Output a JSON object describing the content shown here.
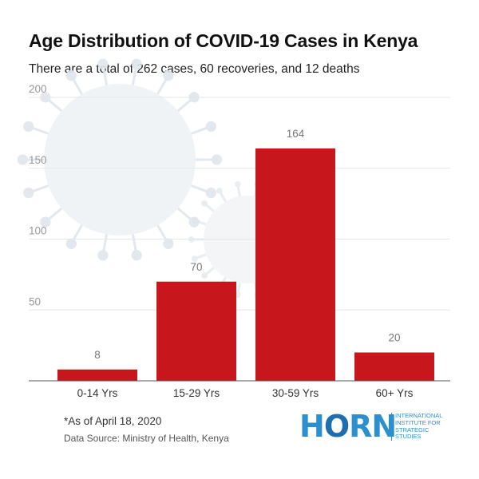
{
  "header": {
    "title": "Age Distribution of COVID-19 Cases in Kenya",
    "subtitle": "There are a total of 262 cases, 60 recoveries, and 12 deaths"
  },
  "chart_data": {
    "type": "bar",
    "categories": [
      "0-14 Yrs",
      "15-29 Yrs",
      "30-59 Yrs",
      "60+ Yrs"
    ],
    "values": [
      8,
      70,
      164,
      20
    ],
    "data_labels": [
      "8",
      "70",
      "164",
      "20"
    ],
    "title": "Age Distribution of COVID-19 Cases in Kenya",
    "xlabel": "",
    "ylabel": "",
    "ylim": [
      0,
      200
    ],
    "yticks": [
      50,
      100,
      150,
      200
    ],
    "ytick_labels": [
      "50",
      "100",
      "150",
      "200"
    ],
    "grid": true,
    "bar_color": "#c8171c",
    "gridline_color": "#e6e6e6",
    "tick_color": "#999999"
  },
  "footer": {
    "note": "*As of April 18, 2020",
    "source": "Data Source: Ministry of Health, Kenya"
  },
  "logo": {
    "word_h": "H",
    "word_o": "O",
    "word_rn": "RN",
    "tagline": [
      "INTERNATIONAL",
      "INSTITUTE FOR",
      "STRATEGIC",
      "STUDIES"
    ],
    "color": "#2c8fce"
  }
}
